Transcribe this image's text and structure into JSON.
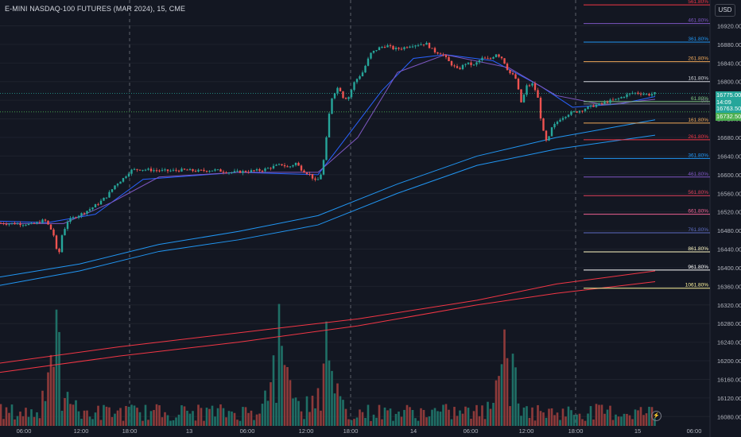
{
  "header": {
    "symbol_title": "E-MINI NASDAQ-100 FUTURES (MAR 2024), 15, CME",
    "currency_label": "USD"
  },
  "price_tags": {
    "last_price": "16775.00",
    "countdown": "14:09",
    "level_a": "16763.50",
    "level_b": "16732.50"
  },
  "chart_data": {
    "type": "candlestick",
    "title": "E-MINI NASDAQ-100 FUTURES (MAR 2024), 15, CME",
    "yaxis": {
      "ticks": [
        16920,
        16880,
        16840,
        16800,
        16760,
        16720,
        16680,
        16640,
        16600,
        16560,
        16520,
        16480,
        16440,
        16400,
        16360,
        16320,
        16280,
        16240,
        16200,
        16160,
        16120,
        16080
      ],
      "labels": [
        "16920.00",
        "16880.00",
        "16840.00",
        "16800.00",
        "16760.00",
        "16720.00",
        "16680.00",
        "16640.00",
        "16600.00",
        "16560.00",
        "16520.00",
        "16480.00",
        "16440.00",
        "16400.00",
        "16360.00",
        "16320.00",
        "16280.00",
        "16240.00",
        "16200.00",
        "16160.00",
        "16120.00",
        "16080.00"
      ],
      "range": [
        16060,
        16955
      ]
    },
    "xaxis": {
      "ticks": [
        "06:00",
        "12:00",
        "18:00",
        "13",
        "06:00",
        "12:00",
        "18:00",
        "14",
        "06:00",
        "12:00",
        "18:00",
        "15",
        "06:00"
      ],
      "session_breaks": [
        "18:00",
        "18:00",
        "18:00"
      ]
    },
    "price_path": [
      [
        0,
        16496
      ],
      [
        10,
        16495
      ],
      [
        20,
        16495
      ],
      [
        30,
        16494
      ],
      [
        40,
        16493
      ],
      [
        48,
        16497
      ],
      [
        56,
        16503
      ],
      [
        63,
        16486
      ],
      [
        68,
        16468
      ],
      [
        73,
        16418
      ],
      [
        78,
        16470
      ],
      [
        85,
        16500
      ],
      [
        95,
        16510
      ],
      [
        105,
        16518
      ],
      [
        115,
        16528
      ],
      [
        125,
        16540
      ],
      [
        135,
        16555
      ],
      [
        145,
        16578
      ],
      [
        155,
        16592
      ],
      [
        162,
        16605
      ],
      [
        166,
        16610
      ],
      [
        175,
        16612
      ],
      [
        190,
        16610
      ],
      [
        210,
        16608
      ],
      [
        230,
        16610
      ],
      [
        250,
        16608
      ],
      [
        270,
        16610
      ],
      [
        290,
        16605
      ],
      [
        310,
        16607
      ],
      [
        330,
        16610
      ],
      [
        345,
        16618
      ],
      [
        355,
        16622
      ],
      [
        362,
        16615
      ],
      [
        372,
        16625
      ],
      [
        380,
        16610
      ],
      [
        390,
        16600
      ],
      [
        398,
        16583
      ],
      [
        404,
        16603
      ],
      [
        408,
        16640
      ],
      [
        412,
        16700
      ],
      [
        416,
        16760
      ],
      [
        420,
        16775
      ],
      [
        426,
        16790
      ],
      [
        432,
        16765
      ],
      [
        438,
        16765
      ],
      [
        446,
        16800
      ],
      [
        456,
        16820
      ],
      [
        466,
        16860
      ],
      [
        476,
        16872
      ],
      [
        486,
        16878
      ],
      [
        496,
        16870
      ],
      [
        506,
        16872
      ],
      [
        516,
        16878
      ],
      [
        526,
        16880
      ],
      [
        536,
        16882
      ],
      [
        546,
        16865
      ],
      [
        556,
        16860
      ],
      [
        566,
        16840
      ],
      [
        576,
        16825
      ],
      [
        586,
        16840
      ],
      [
        596,
        16835
      ],
      [
        606,
        16850
      ],
      [
        616,
        16848
      ],
      [
        624,
        16860
      ],
      [
        632,
        16850
      ],
      [
        640,
        16820
      ],
      [
        648,
        16810
      ],
      [
        656,
        16752
      ],
      [
        662,
        16790
      ],
      [
        670,
        16795
      ],
      [
        676,
        16770
      ],
      [
        682,
        16700
      ],
      [
        688,
        16666
      ],
      [
        694,
        16700
      ],
      [
        704,
        16720
      ],
      [
        716,
        16732
      ],
      [
        726,
        16736
      ],
      [
        736,
        16742
      ],
      [
        746,
        16748
      ],
      [
        756,
        16752
      ],
      [
        766,
        16758
      ],
      [
        776,
        16762
      ],
      [
        786,
        16770
      ],
      [
        796,
        16776
      ],
      [
        806,
        16775
      ],
      [
        816,
        16772
      ],
      [
        824,
        16775
      ]
    ],
    "moving_averages": [
      {
        "color": "#2962ff",
        "points": [
          [
            0,
            16500
          ],
          [
            60,
            16497
          ],
          [
            120,
            16515
          ],
          [
            180,
            16590
          ],
          [
            300,
            16605
          ],
          [
            400,
            16600
          ],
          [
            440,
            16690
          ],
          [
            480,
            16780
          ],
          [
            520,
            16850
          ],
          [
            560,
            16858
          ],
          [
            620,
            16845
          ],
          [
            680,
            16790
          ],
          [
            720,
            16745
          ],
          [
            780,
            16752
          ],
          [
            824,
            16768
          ]
        ]
      },
      {
        "color": "#7e57c2",
        "points": [
          [
            0,
            16495
          ],
          [
            80,
            16495
          ],
          [
            140,
            16540
          ],
          [
            200,
            16595
          ],
          [
            300,
            16605
          ],
          [
            400,
            16605
          ],
          [
            450,
            16680
          ],
          [
            500,
            16820
          ],
          [
            560,
            16858
          ],
          [
            640,
            16830
          ],
          [
            700,
            16770
          ],
          [
            760,
            16750
          ],
          [
            824,
            16762
          ]
        ]
      },
      {
        "color": "#2196f3",
        "points": [
          [
            0,
            16380
          ],
          [
            100,
            16408
          ],
          [
            200,
            16450
          ],
          [
            300,
            16478
          ],
          [
            400,
            16512
          ],
          [
            500,
            16580
          ],
          [
            600,
            16640
          ],
          [
            700,
            16680
          ],
          [
            824,
            16718
          ]
        ]
      },
      {
        "color": "#2196f3",
        "points": [
          [
            0,
            16362
          ],
          [
            100,
            16393
          ],
          [
            200,
            16435
          ],
          [
            300,
            16460
          ],
          [
            400,
            16492
          ],
          [
            500,
            16560
          ],
          [
            600,
            16620
          ],
          [
            700,
            16655
          ],
          [
            824,
            16685
          ]
        ]
      },
      {
        "color": "#f23645",
        "points": [
          [
            0,
            16195
          ],
          [
            150,
            16230
          ],
          [
            300,
            16260
          ],
          [
            450,
            16290
          ],
          [
            600,
            16330
          ],
          [
            700,
            16365
          ],
          [
            824,
            16393
          ]
        ]
      },
      {
        "color": "#f23645",
        "points": [
          [
            0,
            16175
          ],
          [
            150,
            16210
          ],
          [
            300,
            16240
          ],
          [
            450,
            16275
          ],
          [
            600,
            16320
          ],
          [
            700,
            16345
          ],
          [
            824,
            16370
          ]
        ]
      }
    ],
    "horizontal_levels": [
      {
        "label": "161.80%",
        "price": 16800,
        "color": "#d1d4dc"
      },
      {
        "label": "61.80%",
        "price": 16757,
        "color": "#81c784"
      },
      {
        "label": "0%",
        "price": 16752,
        "color": "#787b86"
      },
      {
        "label": "161.80%",
        "price": 16711,
        "color": "#f0a95a"
      },
      {
        "label": "261.80%",
        "price": 16675,
        "color": "#f23645"
      },
      {
        "label": "361.80%",
        "price": 16635,
        "color": "#2196f3"
      },
      {
        "label": "461.80%",
        "price": 16595,
        "color": "#7e57c2"
      },
      {
        "label": "561.80%",
        "price": 16555,
        "color": "#e0405a"
      },
      {
        "label": "661.80%",
        "price": 16515,
        "color": "#f06292"
      },
      {
        "label": "761.80%",
        "price": 16475,
        "color": "#5c6bc0"
      },
      {
        "label": "861.80%",
        "price": 16434,
        "color": "#fff9c4"
      },
      {
        "label": "961.80%",
        "price": 16395,
        "color": "#ffffff"
      },
      {
        "label": "1061.80%",
        "price": 16356,
        "color": "#fff59d"
      },
      {
        "label": "261.80%",
        "price": 16843,
        "color": "#f0a95a"
      },
      {
        "label": "361.80%",
        "price": 16885,
        "color": "#2196f3"
      },
      {
        "label": "461.80%",
        "price": 16925,
        "color": "#7e57c2"
      },
      {
        "label": "561.80%",
        "price": 16965,
        "color": "#f23645"
      },
      {
        "label": "661.80%",
        "price": 17005,
        "color": "#f06292"
      }
    ],
    "volume_peaks": [
      [
        73,
        "high"
      ],
      [
        352,
        "high"
      ],
      [
        408,
        "high"
      ],
      [
        636,
        "high"
      ]
    ],
    "colors": {
      "up": "#26a69a",
      "down": "#ef5350",
      "background": "#131722",
      "grid": "#1e222d",
      "text": "#b2b5be"
    }
  }
}
